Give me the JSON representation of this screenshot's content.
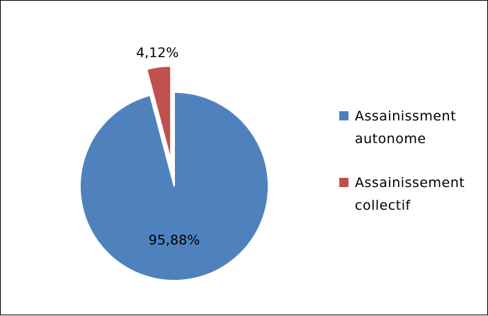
{
  "chart_data": {
    "type": "pie",
    "title": "",
    "slices": [
      {
        "label": "Assainissment autonome",
        "value": 95.88,
        "display": "95,88%",
        "color": "#4F81BD"
      },
      {
        "label": "Assainissement collectif",
        "value": 4.12,
        "display": "4,12%",
        "color": "#C0504D",
        "exploded": true
      }
    ],
    "legend": {
      "placement": "right",
      "items": [
        {
          "line1": "Assainissment",
          "line2": "autonome",
          "color": "#4F81BD"
        },
        {
          "line1": "Assainissement",
          "line2": "collectif",
          "color": "#C0504D"
        }
      ]
    }
  }
}
